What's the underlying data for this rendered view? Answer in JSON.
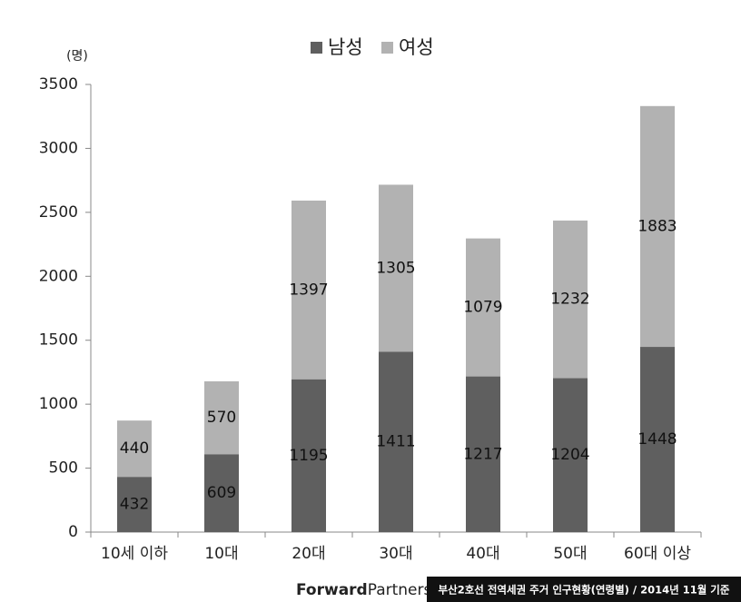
{
  "chart_data": {
    "type": "stacked-bar",
    "y_unit": "(명)",
    "categories": [
      "10세 이하",
      "10대",
      "20대",
      "30대",
      "40대",
      "50대",
      "60대 이상"
    ],
    "series": [
      {
        "name": "남성",
        "color": "#5f5f5f",
        "values": [
          432,
          609,
          1195,
          1411,
          1217,
          1204,
          1448
        ]
      },
      {
        "name": "여성",
        "color": "#b2b2b2",
        "values": [
          440,
          570,
          1397,
          1305,
          1079,
          1232,
          1883
        ]
      }
    ],
    "ylim": [
      0,
      3500
    ],
    "yticks": [
      0,
      500,
      1000,
      1500,
      2000,
      2500,
      3000,
      3500
    ],
    "grid": false,
    "legend": "top"
  },
  "footer": {
    "logo_bold": "Forward",
    "logo_light": "Partners",
    "note": "부산2호선 전역세권 주거 인구현황(연령별) / 2014년 11월 기준"
  }
}
